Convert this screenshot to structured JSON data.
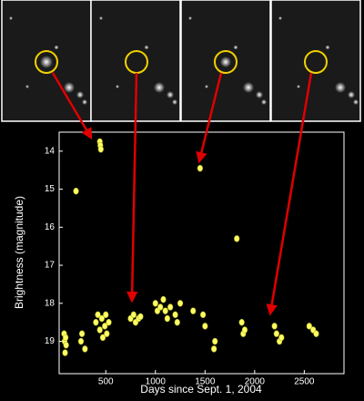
{
  "chart_data": {
    "type": "scatter",
    "xlabel": "Days since Sept. 1, 2004",
    "ylabel": "Brightness (magnitude)",
    "color": "#ffff66",
    "x": [
      80,
      85,
      90,
      95,
      100,
      200,
      250,
      260,
      290,
      440,
      445,
      450,
      400,
      420,
      440,
      460,
      470,
      490,
      500,
      510,
      530,
      750,
      780,
      800,
      830,
      850,
      1000,
      1020,
      1050,
      1080,
      1100,
      1120,
      1150,
      1200,
      1220,
      1250,
      1380,
      1450,
      1480,
      1500,
      1590,
      1600,
      1820,
      1870,
      1885,
      1900,
      2200,
      2220,
      2250,
      2270,
      2550,
      2590,
      2620
    ],
    "values": [
      18.8,
      19.0,
      19.3,
      18.9,
      19.1,
      15.05,
      19.0,
      18.8,
      19.2,
      13.75,
      13.85,
      13.95,
      18.5,
      18.3,
      18.7,
      18.4,
      18.9,
      18.6,
      18.3,
      18.8,
      18.5,
      18.4,
      18.3,
      18.5,
      18.4,
      18.35,
      18.0,
      18.2,
      18.1,
      17.9,
      18.2,
      18.4,
      18.1,
      18.3,
      18.5,
      18.0,
      18.2,
      14.45,
      18.3,
      18.6,
      19.2,
      19.0,
      16.3,
      18.5,
      18.8,
      18.7,
      18.6,
      18.8,
      19.0,
      18.9,
      18.6,
      18.7,
      18.8
    ],
    "xlim": [
      30,
      2900
    ],
    "ylim": [
      19.85,
      13.5
    ],
    "xticks": [
      500,
      1000,
      1500,
      2000,
      2500
    ],
    "yticks": [
      14,
      15,
      16,
      17,
      18,
      19
    ]
  }
}
